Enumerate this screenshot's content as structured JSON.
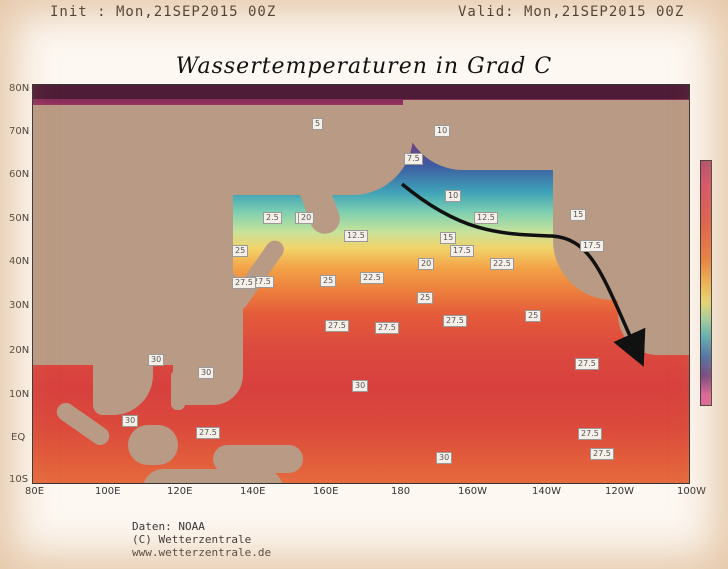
{
  "header": {
    "init": "Init : Mon,21SEP2015 00Z",
    "valid": "Valid: Mon,21SEP2015 00Z"
  },
  "title": "Wassertemperaturen in Grad C",
  "axes": {
    "lon_labels": [
      "80E",
      "100E",
      "120E",
      "140E",
      "160E",
      "180",
      "160W",
      "140W",
      "120W",
      "100W"
    ],
    "lat_labels": [
      "80N",
      "70N",
      "60N",
      "50N",
      "40N",
      "30N",
      "20N",
      "10N",
      "EQ",
      "10S"
    ]
  },
  "contour_labels": [
    {
      "t": "5"
    },
    {
      "t": "7.5"
    },
    {
      "t": "10"
    },
    {
      "t": "10"
    },
    {
      "t": "12.5"
    },
    {
      "t": "12.5"
    },
    {
      "t": "15"
    },
    {
      "t": "15"
    },
    {
      "t": "17.5"
    },
    {
      "t": "17.5"
    },
    {
      "t": "20"
    },
    {
      "t": "20"
    },
    {
      "t": "22.5"
    },
    {
      "t": "22.5"
    },
    {
      "t": "25"
    },
    {
      "t": "25"
    },
    {
      "t": "25"
    },
    {
      "t": "27.5"
    },
    {
      "t": "27.5"
    },
    {
      "t": "27.5"
    },
    {
      "t": "27.5"
    },
    {
      "t": "30"
    },
    {
      "t": "30"
    },
    {
      "t": "27.5"
    },
    {
      "t": "27.5"
    },
    {
      "t": "27.5"
    },
    {
      "t": "27.5"
    },
    {
      "t": "30"
    },
    {
      "t": "30"
    },
    {
      "t": "25"
    },
    {
      "t": "2.5"
    },
    {
      "t": "20"
    },
    {
      "t": "27.5"
    },
    {
      "t": "30"
    }
  ],
  "credit": {
    "line1": "Daten: NOAA",
    "line2": "(C) Wetterzentrale",
    "line3": "www.wetterzentrale.de"
  }
}
